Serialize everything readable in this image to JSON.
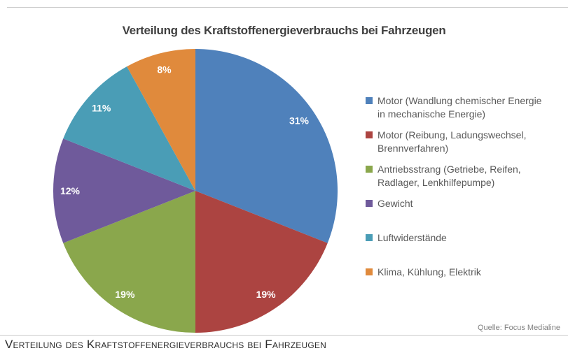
{
  "page": {
    "caption": "Verteilung des Kraftstoffenergieverbrauchs bei Fahrzeugen"
  },
  "chart_data": {
    "type": "pie",
    "title": "Verteilung des Kraftstoffenergieverbrauchs bei Fahrzeugen",
    "source": "Quelle: Focus Medialine",
    "legend_position": "right",
    "start_angle_deg": 0,
    "direction": "clockwise",
    "total": 100,
    "slices": [
      {
        "label": "Motor (Wandlung chemischer Energie in mechanische Energie)",
        "legend_lines": [
          "Motor (Wandlung chemischer Energie",
          "in mechanische Energie)"
        ],
        "value": 31,
        "data_label": "31%",
        "color": "#4f81bb"
      },
      {
        "label": "Motor (Reibung, Ladungswechsel, Brennverfahren)",
        "legend_lines": [
          "Motor (Reibung, Ladungswechsel,",
          "Brennverfahren)"
        ],
        "value": 19,
        "data_label": "19%",
        "color": "#ac4441"
      },
      {
        "label": "Antriebsstrang (Getriebe, Reifen, Radlager, Lenkhilfepumpe)",
        "legend_lines": [
          "Antriebsstrang (Getriebe, Reifen,",
          "Radlager, Lenkhilfepumpe)"
        ],
        "value": 19,
        "data_label": "19%",
        "color": "#8aa74c"
      },
      {
        "label": "Gewicht",
        "legend_lines": [
          "Gewicht"
        ],
        "value": 12,
        "data_label": "12%",
        "color": "#6f5a9b"
      },
      {
        "label": "Luftwiderstände",
        "legend_lines": [
          "Luftwiderstände"
        ],
        "value": 11,
        "data_label": "11%",
        "color": "#4a9db6"
      },
      {
        "label": "Klima, Kühlung, Elektrik",
        "legend_lines": [
          "Klima, Kühlung, Elektrik"
        ],
        "value": 8,
        "data_label": "8%",
        "color": "#e08a3c"
      }
    ]
  }
}
